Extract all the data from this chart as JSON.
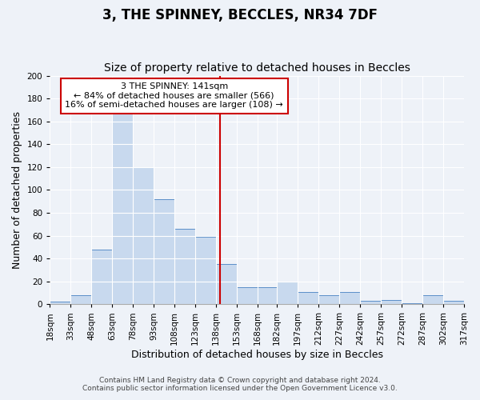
{
  "title": "3, THE SPINNEY, BECCLES, NR34 7DF",
  "subtitle": "Size of property relative to detached houses in Beccles",
  "xlabel": "Distribution of detached houses by size in Beccles",
  "ylabel": "Number of detached properties",
  "bin_edges": [
    18,
    33,
    48,
    63,
    78,
    93,
    108,
    123,
    138,
    153,
    168,
    182,
    197,
    212,
    227,
    242,
    257,
    272,
    287,
    302,
    317
  ],
  "bar_heights": [
    2,
    8,
    48,
    167,
    120,
    92,
    66,
    59,
    35,
    15,
    15,
    20,
    11,
    8,
    11,
    3,
    4,
    1,
    8,
    3
  ],
  "bar_color": "#c8d9ee",
  "bar_edge_color": "#5b8fc9",
  "vline_x": 141,
  "vline_color": "#cc0000",
  "ylim": [
    0,
    200
  ],
  "yticks": [
    0,
    20,
    40,
    60,
    80,
    100,
    120,
    140,
    160,
    180,
    200
  ],
  "tick_labels": [
    "18sqm",
    "33sqm",
    "48sqm",
    "63sqm",
    "78sqm",
    "93sqm",
    "108sqm",
    "123sqm",
    "138sqm",
    "153sqm",
    "168sqm",
    "182sqm",
    "197sqm",
    "212sqm",
    "227sqm",
    "242sqm",
    "257sqm",
    "272sqm",
    "287sqm",
    "302sqm",
    "317sqm"
  ],
  "annotation_title": "3 THE SPINNEY: 141sqm",
  "annotation_line1": "← 84% of detached houses are smaller (566)",
  "annotation_line2": "16% of semi-detached houses are larger (108) →",
  "annotation_box_color": "#ffffff",
  "annotation_box_edge_color": "#cc0000",
  "footer_line1": "Contains HM Land Registry data © Crown copyright and database right 2024.",
  "footer_line2": "Contains public sector information licensed under the Open Government Licence v3.0.",
  "background_color": "#eef2f8",
  "grid_color": "#ffffff",
  "title_fontsize": 12,
  "subtitle_fontsize": 10,
  "axis_label_fontsize": 9,
  "tick_fontsize": 7.5,
  "footer_fontsize": 6.5,
  "annotation_fontsize": 8
}
